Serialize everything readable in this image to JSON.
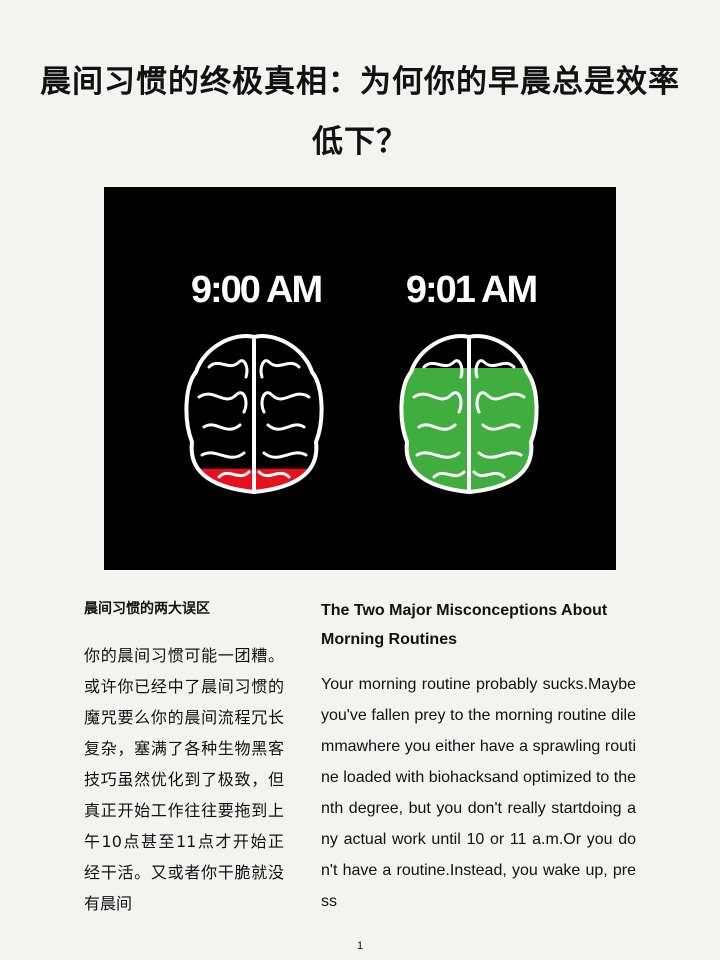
{
  "title": "晨间习惯的终极真相：为何你的早晨总是效率低下？",
  "hero": {
    "left_time": "9:00 AM",
    "right_time": "9:01 AM",
    "left_brain_fill": 0.15,
    "right_brain_fill": 0.8,
    "colors": {
      "background": "#000000",
      "left_fill": "#e8101c",
      "right_fill": "#3fae3f",
      "outline": "#ffffff"
    }
  },
  "zh": {
    "heading": "晨间习惯的两大误区",
    "body": "你的晨间习惯可能一团糟。或许你已经中了晨间习惯的魔咒要么你的晨间流程冗长复杂，塞满了各种生物黑客技巧虽然优化到了极致，但真正开始工作往往要拖到上午10点甚至11点才开始正经干活。又或者你干脆就没有晨间"
  },
  "en": {
    "heading": "The Two Major Misconceptions About Morning Routines",
    "body": "Your morning routine probably sucks.Maybe you've fallen prey to the morning routine dilemmawhere you either have a sprawling routine loaded with biohacksand optimized to the nth degree, but you don't really startdoing any actual work until 10 or 11 a.m.Or you don't have a routine.Instead, you wake up, press"
  },
  "page_number": "1"
}
